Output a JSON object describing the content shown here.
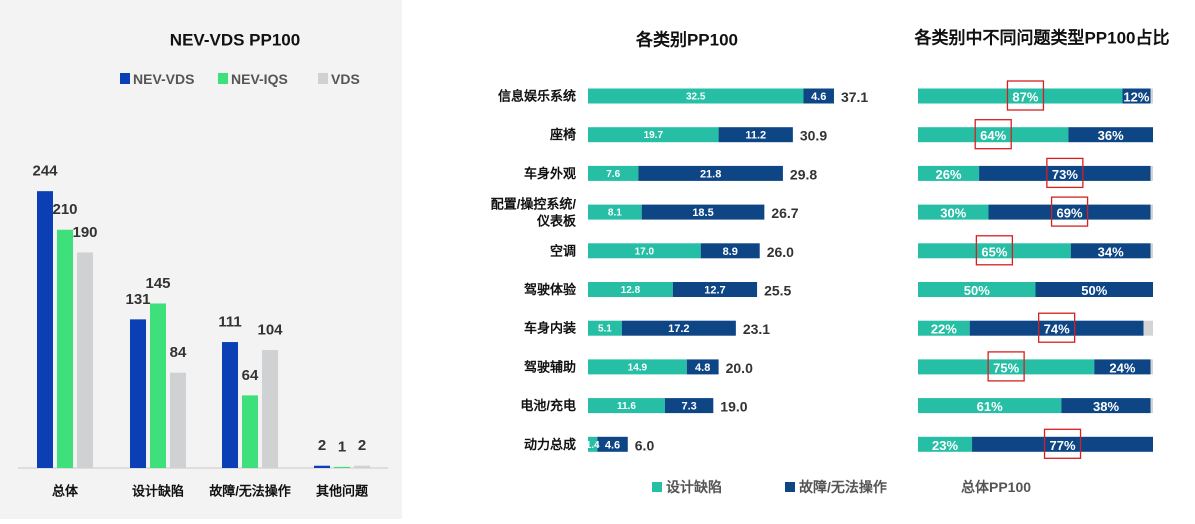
{
  "colors": {
    "nev_vds": "#0b3fb5",
    "nev_iqs": "#3de07a",
    "vds": "#cfd1d3",
    "design_defect": "#26bfa5",
    "malfunction": "#0d4585",
    "highlight_box": "#d62020",
    "total_legend": "#ffffff"
  },
  "chart_data": [
    {
      "type": "bar",
      "title": "NEV-VDS PP100",
      "categories": [
        "总体",
        "设计缺陷",
        "故障/无法操作",
        "其他问题"
      ],
      "series": [
        {
          "name": "NEV-VDS",
          "values": [
            244,
            131,
            111,
            2
          ]
        },
        {
          "name": "NEV-IQS",
          "values": [
            210,
            145,
            64,
            1
          ]
        },
        {
          "name": "VDS",
          "values": [
            190,
            84,
            104,
            2
          ]
        }
      ],
      "ylim": [
        0,
        260
      ],
      "xlabel": "",
      "ylabel": "",
      "legend": "top"
    },
    {
      "type": "bar",
      "orientation": "horizontal",
      "stacked": true,
      "title": "各类别PP100",
      "categories": [
        "信息娱乐系统",
        "座椅",
        "车身外观",
        "配置/操控系统/仪表板",
        "空调",
        "驾驶体验",
        "车身内装",
        "驾驶辅助",
        "电池/充电",
        "动力总成"
      ],
      "category_lines": [
        [
          "信息娱乐系统"
        ],
        [
          "座椅"
        ],
        [
          "车身外观"
        ],
        [
          "配置/操控系统/",
          "仪表板"
        ],
        [
          "空调"
        ],
        [
          "驾驶体验"
        ],
        [
          "车身内装"
        ],
        [
          "驾驶辅助"
        ],
        [
          "电池/充电"
        ],
        [
          "动力总成"
        ]
      ],
      "series": [
        {
          "name": "设计缺陷",
          "values": [
            "32.5",
            "19.7",
            "7.6",
            "8.1",
            "17.0",
            "12.8",
            "5.1",
            "14.9",
            "11.6",
            "1.4"
          ]
        },
        {
          "name": "故障/无法操作",
          "values": [
            "4.6",
            "11.2",
            "21.8",
            "18.5",
            "8.9",
            "12.7",
            "17.2",
            "4.8",
            "7.3",
            "4.6"
          ]
        }
      ],
      "totals": [
        "37.1",
        "30.9",
        "29.8",
        "26.7",
        "26.0",
        "25.5",
        "23.1",
        "20.0",
        "19.0",
        "6.0"
      ],
      "xlim": [
        0,
        40
      ]
    },
    {
      "type": "bar",
      "orientation": "horizontal",
      "stacked": true,
      "percent": true,
      "title": "各类别中不同问题类型PP100占比",
      "categories": [
        "信息娱乐系统",
        "座椅",
        "车身外观",
        "配置/操控系统/仪表板",
        "空调",
        "驾驶体验",
        "车身内装",
        "驾驶辅助",
        "电池/充电",
        "动力总成"
      ],
      "series": [
        {
          "name": "设计缺陷",
          "values": [
            87,
            64,
            26,
            30,
            65,
            50,
            22,
            75,
            61,
            23
          ]
        },
        {
          "name": "故障/无法操作",
          "values": [
            12,
            36,
            73,
            69,
            34,
            50,
            74,
            24,
            38,
            77
          ]
        }
      ],
      "highlighted": [
        "design",
        "design",
        "malfunction",
        "malfunction",
        "design",
        "none",
        "malfunction",
        "design",
        "none",
        "malfunction"
      ]
    }
  ],
  "legend_right": [
    "设计缺陷",
    "故障/无法操作",
    "总体PP100"
  ]
}
